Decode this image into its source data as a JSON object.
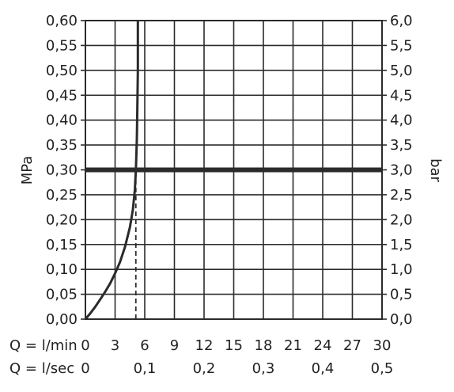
{
  "chart_data": {
    "type": "line",
    "y_left": {
      "label": "MPa",
      "min": 0,
      "max": 0.6,
      "ticks": [
        0,
        0.05,
        0.1,
        0.15,
        0.2,
        0.25,
        0.3,
        0.35,
        0.4,
        0.45,
        0.5,
        0.55,
        0.6
      ],
      "tick_labels": [
        "0,00",
        "0,05",
        "0,10",
        "0,15",
        "0,20",
        "0,25",
        "0,30",
        "0,35",
        "0,40",
        "0,45",
        "0,50",
        "0,55",
        "0,60"
      ]
    },
    "y_right": {
      "label": "bar",
      "min": 0,
      "max": 6,
      "tick_labels": [
        "0,0",
        "0,5",
        "1,0",
        "1,5",
        "2,0",
        "2,5",
        "3,0",
        "3,5",
        "4,0",
        "4,5",
        "5,0",
        "5,5",
        "6,0"
      ]
    },
    "x_lmin": {
      "label": "Q = l/min",
      "min": 0,
      "max": 30,
      "ticks": [
        0,
        3,
        6,
        9,
        12,
        15,
        18,
        21,
        24,
        27,
        30
      ],
      "tick_labels": [
        "0",
        "3",
        "6",
        "9",
        "12",
        "15",
        "18",
        "21",
        "24",
        "27",
        "30"
      ]
    },
    "x_lsec": {
      "label": "Q = l/sec",
      "ticks": [
        0,
        0.1,
        0.2,
        0.3,
        0.4,
        0.5
      ],
      "tick_labels": [
        "0",
        "0,1",
        "0,2",
        "0,3",
        "0,4",
        "0,5"
      ]
    },
    "grid": true,
    "series": [
      {
        "type": "curve",
        "color": "#2b2b2b",
        "x": [
          0,
          0.5,
          1,
          1.5,
          2,
          2.5,
          3,
          3.5,
          4,
          4.5,
          4.8,
          5.0,
          5.1,
          5.2,
          5.25,
          5.3,
          5.3
        ],
        "y": [
          0.0,
          0.012,
          0.025,
          0.04,
          0.055,
          0.072,
          0.092,
          0.115,
          0.145,
          0.185,
          0.22,
          0.26,
          0.3,
          0.36,
          0.42,
          0.5,
          0.6
        ]
      }
    ],
    "reference_lines": [
      {
        "orientation": "horizontal",
        "y": 0.3,
        "style": "solid",
        "weight": "thick",
        "color": "#2b2b2b"
      },
      {
        "orientation": "vertical",
        "x": 5.1,
        "y_from": 0,
        "y_to": 0.3,
        "style": "dashed",
        "color": "#2b2b2b"
      }
    ]
  }
}
